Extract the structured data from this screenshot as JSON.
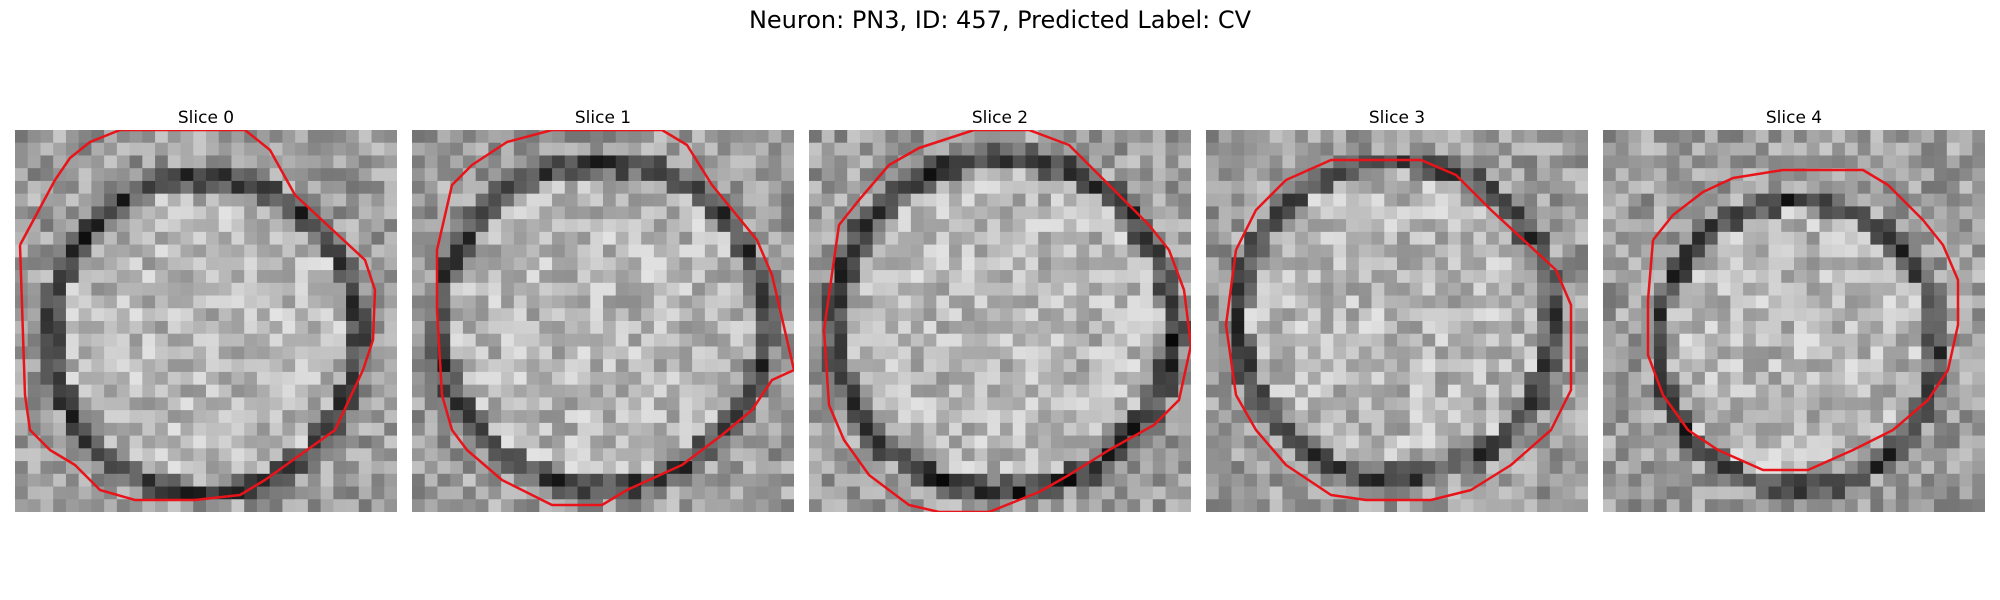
{
  "figure": {
    "title": "Neuron: PN3, ID: 457, Predicted Label: CV",
    "contour_color": "#e8141a",
    "panels": [
      {
        "label": "Slice 0",
        "image": "grayscale microscopy slice of cell body with red segmentation contour"
      },
      {
        "label": "Slice 1",
        "image": "grayscale microscopy slice of cell body with red segmentation contour"
      },
      {
        "label": "Slice 2",
        "image": "grayscale microscopy slice of cell body with red segmentation contour"
      },
      {
        "label": "Slice 3",
        "image": "grayscale microscopy slice of cell body with red segmentation contour"
      },
      {
        "label": "Slice 4",
        "image": "grayscale microscopy slice of cell body with red segmentation contour"
      }
    ]
  }
}
